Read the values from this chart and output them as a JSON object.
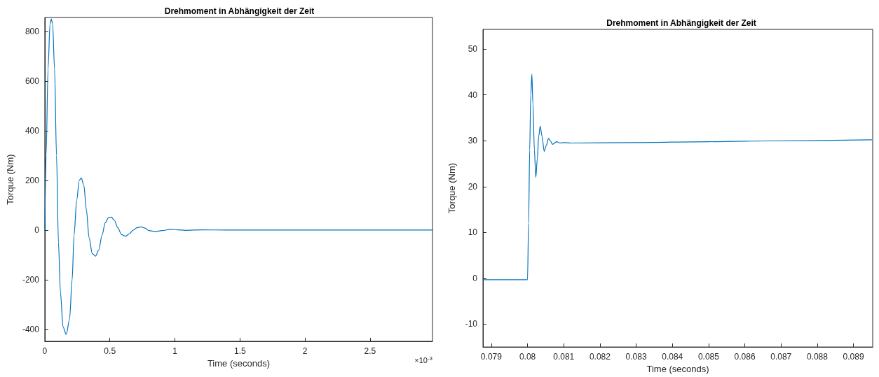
{
  "chart_data": [
    {
      "type": "line",
      "title": "Drehmoment in Abhängigkeit der Zeit",
      "xlabel": "Time (seconds)",
      "ylabel": "Torque (Nm)",
      "annotations": [
        "×10$^{-3}$"
      ],
      "x": [
        0,
        0.01,
        0.025,
        0.04,
        0.05,
        0.06,
        0.075,
        0.09,
        0.105,
        0.12,
        0.14,
        0.165,
        0.19,
        0.21,
        0.225,
        0.245,
        0.265,
        0.28,
        0.3,
        0.32,
        0.34,
        0.365,
        0.39,
        0.415,
        0.44,
        0.465,
        0.49,
        0.51,
        0.535,
        0.56,
        0.59,
        0.62,
        0.65,
        0.68,
        0.71,
        0.74,
        0.77,
        0.8,
        0.85,
        0.9,
        0.97,
        1.02,
        1.08,
        1.2,
        1.4,
        2,
        2.98
      ],
      "series": [
        {
          "color": "#0072bd",
          "values": [
            0,
            300,
            650,
            830,
            850,
            830,
            650,
            300,
            -50,
            -250,
            -390,
            -420,
            -360,
            -200,
            -20,
            120,
            200,
            210,
            180,
            80,
            -30,
            -95,
            -105,
            -80,
            -20,
            30,
            50,
            52,
            40,
            10,
            -18,
            -25,
            -15,
            0,
            10,
            13,
            8,
            -2,
            -6,
            -2,
            3,
            1,
            -1,
            1,
            0,
            0,
            0
          ]
        }
      ],
      "xlim": [
        0,
        2.98
      ],
      "ylim": [
        -448,
        856
      ],
      "xticks": [
        0,
        0.5,
        1,
        1.5,
        2,
        2.5
      ],
      "yticks": [
        -400,
        -200,
        0,
        200,
        400,
        600,
        800
      ],
      "grid": false,
      "marker": "none",
      "line_style": "solid"
    },
    {
      "type": "line",
      "title": "Drehmoment in Abhängigkeit der Zeit",
      "xlabel": "Time (seconds)",
      "ylabel": "Torque (Nm)",
      "x": [
        0.07877,
        0.079,
        0.0798,
        0.08,
        0.08003,
        0.08006,
        0.08009,
        0.08012,
        0.08015,
        0.08019,
        0.08023,
        0.08027,
        0.08031,
        0.08035,
        0.0804,
        0.08046,
        0.08052,
        0.08058,
        0.08063,
        0.08069,
        0.08075,
        0.0808,
        0.0809,
        0.081,
        0.0812,
        0.083,
        0.085,
        0.087,
        0.0895
      ],
      "series": [
        {
          "color": "#0072bd",
          "values": [
            -0.3,
            -0.3,
            -0.3,
            -0.3,
            12,
            28,
            40,
            44.5,
            38,
            28,
            22,
            26,
            31,
            33.2,
            31,
            27.7,
            29,
            30.5,
            30,
            29.2,
            29.5,
            29.8,
            29.5,
            29.6,
            29.5,
            29.6,
            29.8,
            30,
            30.2
          ]
        }
      ],
      "xlim": [
        0.07877,
        0.08953
      ],
      "ylim": [
        -15,
        54.3
      ],
      "xticks": [
        0.079,
        0.08,
        0.081,
        0.082,
        0.083,
        0.084,
        0.085,
        0.086,
        0.087,
        0.088,
        0.089
      ],
      "yticks": [
        -10,
        0,
        10,
        20,
        30,
        40,
        50
      ],
      "grid": false,
      "marker": "none",
      "line_style": "solid"
    }
  ]
}
